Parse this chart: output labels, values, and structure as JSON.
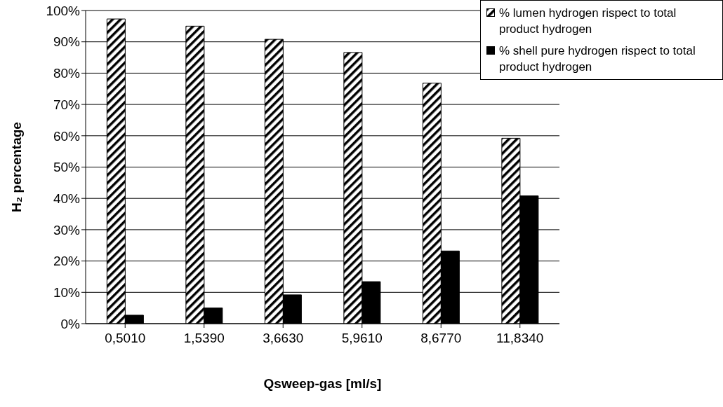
{
  "chart_data": {
    "type": "bar",
    "xlabel": "Qsweep-gas [ml/s]",
    "ylabel": "H₂ percentage",
    "categories": [
      "0,5010",
      "1,5390",
      "3,6630",
      "5,9610",
      "8,6770",
      "11,8340"
    ],
    "series": [
      {
        "name": "% lumen hydrogen rispect to total product hydrogen",
        "color": "#000000",
        "values": [
          97.3,
          95.0,
          90.8,
          86.6,
          76.8,
          59.2
        ]
      },
      {
        "name": "% shell pure hydrogen rispect to total product hydrogen",
        "color": "#000000",
        "values": [
          2.7,
          5.0,
          9.2,
          13.4,
          23.2,
          40.8
        ]
      }
    ],
    "ylim": [
      0,
      100
    ],
    "yticks": [
      {
        "value": 0,
        "label": "0%"
      },
      {
        "value": 10,
        "label": "10%"
      },
      {
        "value": 20,
        "label": "20%"
      },
      {
        "value": 30,
        "label": "30%"
      },
      {
        "value": 40,
        "label": "40%"
      },
      {
        "value": 50,
        "label": "50%"
      },
      {
        "value": 60,
        "label": "60%"
      },
      {
        "value": 70,
        "label": "70%"
      },
      {
        "value": 80,
        "label": "80%"
      },
      {
        "value": 90,
        "label": "90%"
      },
      {
        "value": 100,
        "label": "100%"
      }
    ],
    "grid": "y",
    "legend": "top right"
  }
}
